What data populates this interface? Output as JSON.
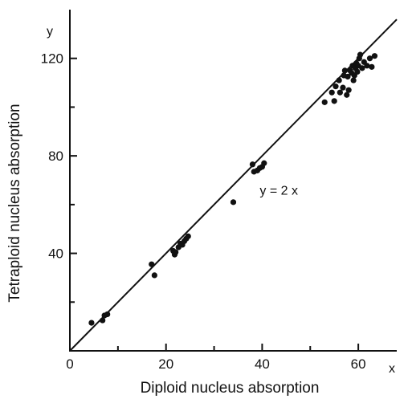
{
  "chart_data": {
    "type": "scatter",
    "title": "",
    "xlabel": "Diploid nucleus absorption",
    "ylabel": "Tetraploid nucleus absorption",
    "x_corner_label": "x",
    "y_corner_label": "y",
    "xlim": [
      0,
      68
    ],
    "ylim": [
      0,
      140
    ],
    "x_ticks": [
      0,
      20,
      40,
      60
    ],
    "x_tick_labels": [
      "0",
      "20",
      "40",
      "60"
    ],
    "y_ticks": [
      40,
      80,
      120
    ],
    "y_tick_labels": [
      "40",
      "80",
      "120"
    ],
    "x_minor_ticks": [
      10,
      30,
      50
    ],
    "y_minor_ticks": [
      20,
      60,
      100
    ],
    "grid": false,
    "reference_line": {
      "label": "y = 2 x",
      "slope": 2,
      "intercept": 0
    },
    "series": [
      {
        "points": [
          [
            4.5,
            11.5
          ],
          [
            6.8,
            12.5
          ],
          [
            7.2,
            14.5
          ],
          [
            7.8,
            15
          ],
          [
            17.0,
            35.5
          ],
          [
            17.6,
            31
          ],
          [
            21.5,
            41
          ],
          [
            21.8,
            39.5
          ],
          [
            22.0,
            40.5
          ],
          [
            22.6,
            42.5
          ],
          [
            23.0,
            44
          ],
          [
            23.4,
            43.5
          ],
          [
            23.8,
            45
          ],
          [
            24.2,
            46
          ],
          [
            24.6,
            47
          ],
          [
            34.0,
            61
          ],
          [
            38.0,
            76.5
          ],
          [
            38.3,
            73.5
          ],
          [
            39.0,
            74
          ],
          [
            39.5,
            75
          ],
          [
            40.0,
            75.5
          ],
          [
            40.4,
            77
          ],
          [
            53.0,
            102
          ],
          [
            54.5,
            106
          ],
          [
            55.0,
            102.5
          ],
          [
            55.3,
            108.5
          ],
          [
            56.0,
            111
          ],
          [
            56.2,
            106
          ],
          [
            56.8,
            108
          ],
          [
            57.0,
            113
          ],
          [
            57.2,
            115
          ],
          [
            57.6,
            105
          ],
          [
            57.8,
            112.5
          ],
          [
            58.0,
            107
          ],
          [
            58.3,
            115
          ],
          [
            58.6,
            114
          ],
          [
            58.8,
            117
          ],
          [
            59.0,
            111
          ],
          [
            59.2,
            113
          ],
          [
            59.4,
            116
          ],
          [
            59.6,
            118
          ],
          [
            59.8,
            114.5
          ],
          [
            60.0,
            117
          ],
          [
            60.2,
            120
          ],
          [
            60.4,
            121.5
          ],
          [
            60.8,
            116
          ],
          [
            61.2,
            118.5
          ],
          [
            61.8,
            117
          ],
          [
            62.4,
            120
          ],
          [
            62.8,
            116.5
          ],
          [
            63.4,
            121
          ]
        ]
      }
    ]
  }
}
